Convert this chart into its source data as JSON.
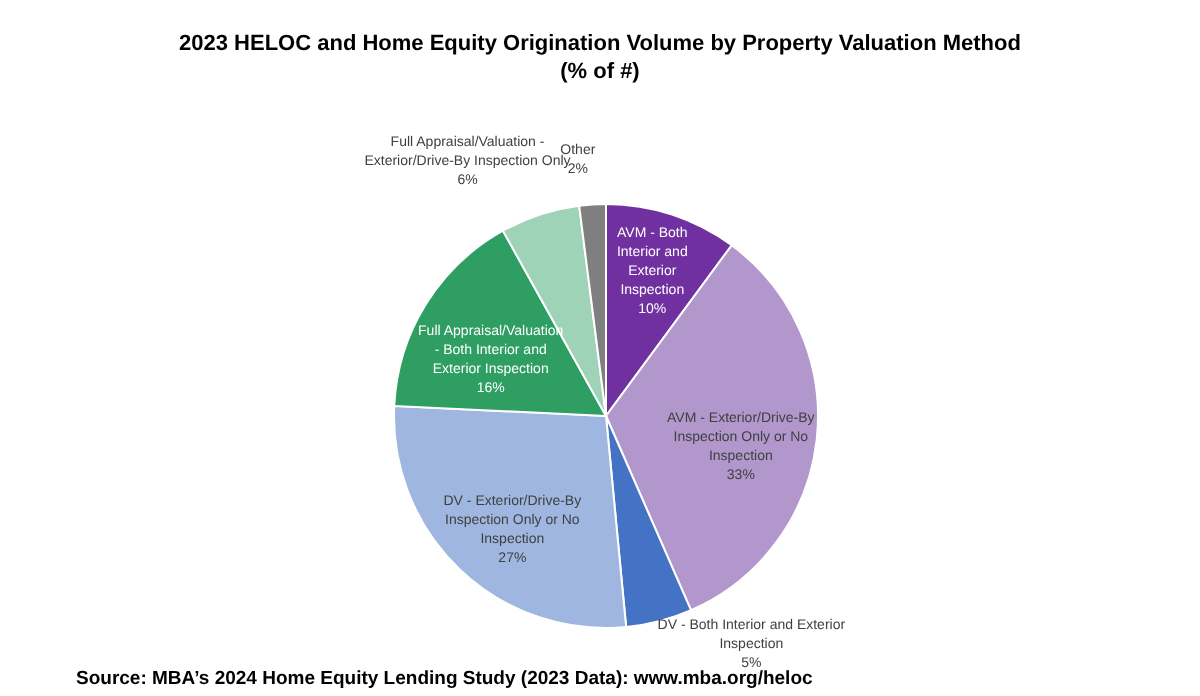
{
  "chart_data": {
    "type": "pie",
    "title": "2023 HELOC and Home Equity Origination Volume by Property Valuation Method",
    "subtitle": "(% of #)",
    "categories": [
      "AVM - Both Interior and Exterior Inspection",
      "AVM - Exterior/Drive-By Inspection Only or No Inspection",
      "DV - Both Interior and Exterior Inspection",
      "DV - Exterior/Drive-By Inspection Only or No Inspection",
      "Full Appraisal/Valuation - Both Interior and Exterior Inspection",
      "Full Appraisal/Valuation - Exterior/Drive-By Inspection Only",
      "Other"
    ],
    "values": [
      10,
      33,
      5,
      27,
      16,
      6,
      2
    ],
    "value_labels": [
      "10%",
      "33%",
      "5%",
      "27%",
      "16%",
      "6%",
      "2%"
    ],
    "colors": [
      "#7030a0",
      "#b197cb",
      "#4472c4",
      "#9fb6e0",
      "#2f9e62",
      "#9fd3b8",
      "#7f7f7f"
    ],
    "legend": false,
    "annotations": [
      "Source: MBA’s 2024 Home Equity Lending Study (2023 Data): www.mba.org/heloc"
    ]
  }
}
